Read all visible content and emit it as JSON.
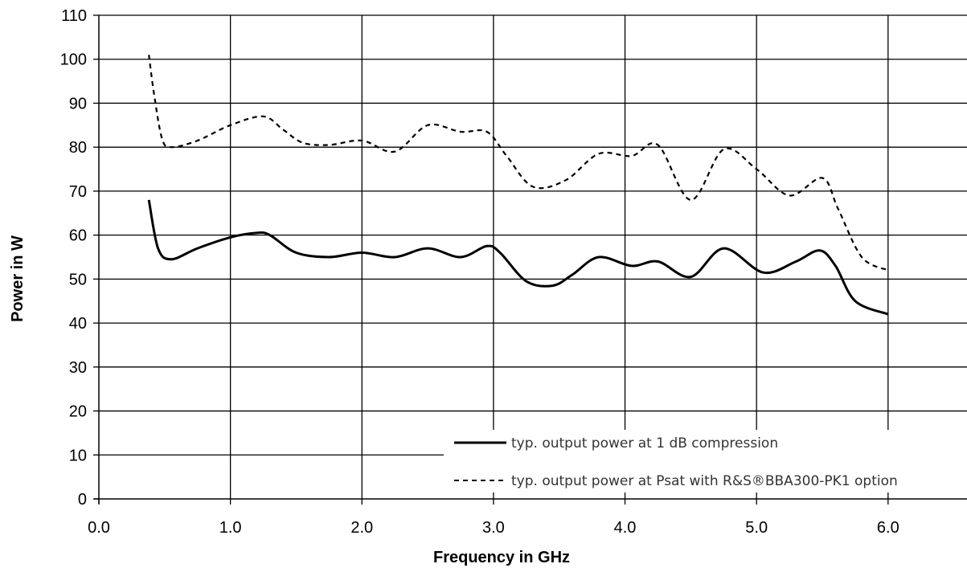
{
  "chart_data": {
    "type": "line",
    "title": "",
    "xlabel": "Frequency in GHz",
    "ylabel": "Power in W",
    "xlim": [
      0.0,
      6.6
    ],
    "ylim": [
      0,
      110
    ],
    "xticks": [
      "0.0",
      "1.0",
      "2.0",
      "3.0",
      "4.0",
      "5.0",
      "6.0"
    ],
    "yticks": [
      "0",
      "10",
      "20",
      "30",
      "40",
      "50",
      "60",
      "70",
      "80",
      "90",
      "100",
      "110"
    ],
    "grid": true,
    "legend_position": "bottom-right",
    "series": [
      {
        "name": "typ. output power at 1 dB compression",
        "style": "solid",
        "color": "#000000",
        "x": [
          0.38,
          0.45,
          0.55,
          0.75,
          1.0,
          1.2,
          1.3,
          1.5,
          1.75,
          2.0,
          2.25,
          2.5,
          2.75,
          2.95,
          3.05,
          3.25,
          3.45,
          3.6,
          3.8,
          4.05,
          4.25,
          4.5,
          4.75,
          5.05,
          5.3,
          5.48,
          5.6,
          5.75,
          6.0
        ],
        "y": [
          68,
          57,
          54.5,
          57,
          59.5,
          60.5,
          60,
          56,
          55,
          56,
          55,
          57,
          55,
          57.5,
          56,
          49.5,
          48.5,
          51,
          55,
          53,
          54,
          50.5,
          57,
          51.5,
          54,
          56.5,
          53,
          45,
          42
        ]
      },
      {
        "name": "typ. output power at Psat with R&S®BBA300-PK1 option",
        "style": "dashed",
        "color": "#000000",
        "x": [
          0.38,
          0.42,
          0.48,
          0.55,
          0.75,
          1.0,
          1.25,
          1.4,
          1.55,
          1.75,
          2.0,
          2.25,
          2.5,
          2.75,
          2.95,
          3.1,
          3.3,
          3.55,
          3.8,
          4.05,
          4.25,
          4.5,
          4.75,
          5.0,
          5.25,
          5.5,
          5.62,
          5.8,
          6.0
        ],
        "y": [
          101,
          92,
          82,
          80,
          81.5,
          85,
          87,
          84,
          81,
          80.5,
          81.5,
          79,
          85,
          83.5,
          83.5,
          78,
          71,
          72.5,
          78.5,
          78,
          80.5,
          68,
          79.5,
          75,
          69,
          73,
          66,
          55,
          52
        ]
      }
    ]
  }
}
